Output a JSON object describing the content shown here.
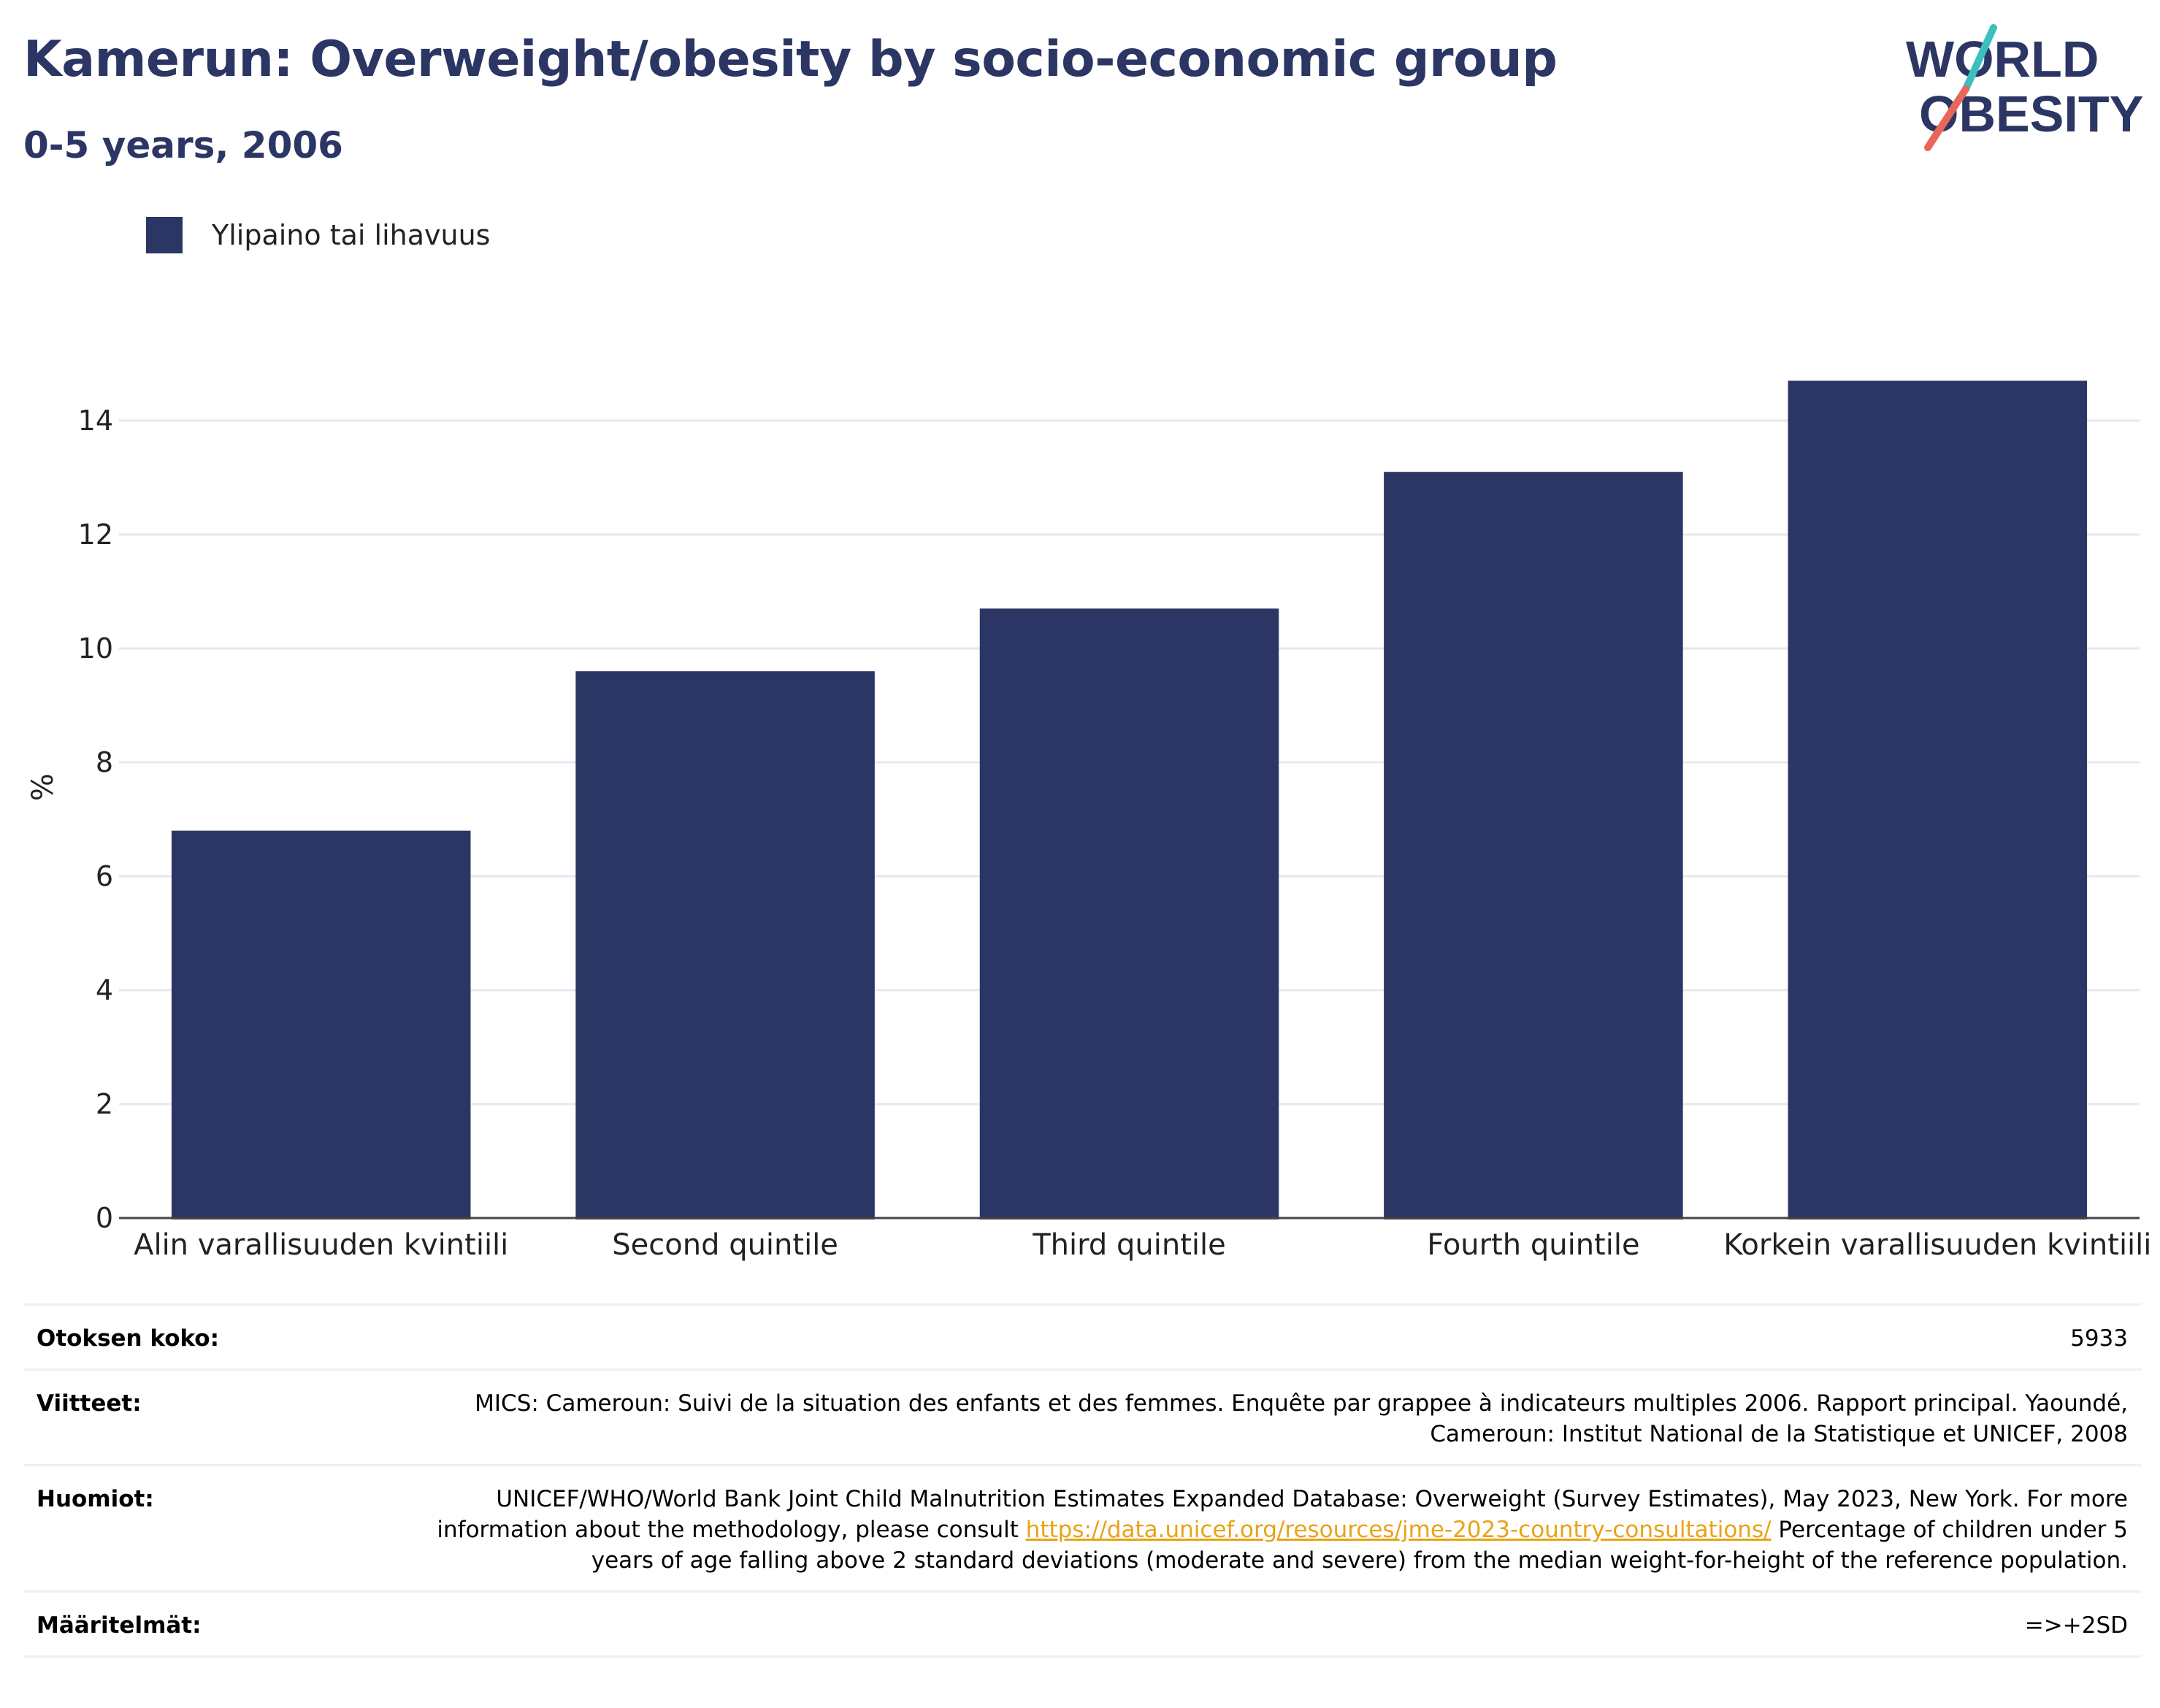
{
  "title": "Kamerun: Overweight/obesity by socio-economic group",
  "subtitle": "0-5 years, 2006",
  "logo": {
    "line1": "WORLD",
    "line2": "OBESITY"
  },
  "colors": {
    "bar": "#2b3664",
    "title": "#2b3664",
    "link": "#e8a317",
    "logo_teal": "#3cbfbf",
    "logo_red": "#e8675a"
  },
  "legend": {
    "label": "Ylipaino tai lihavuus"
  },
  "chart_data": {
    "type": "bar",
    "categories": [
      "Alin varallisuuden kvintiili",
      "Second quintile",
      "Third quintile",
      "Fourth quintile",
      "Korkein varallisuuden kvintiili"
    ],
    "series": [
      {
        "name": "Ylipaino tai lihavuus",
        "values": [
          6.8,
          9.6,
          10.7,
          13.1,
          14.7
        ]
      }
    ],
    "ylabel": "%",
    "ylim": [
      0,
      15
    ],
    "yticks": [
      0,
      2,
      4,
      6,
      8,
      10,
      12,
      14
    ],
    "grid": true
  },
  "footer": {
    "sample_label": "Otoksen koko:",
    "sample_value": "5933",
    "refs_label": "Viitteet:",
    "refs_value": "MICS: Cameroun: Suivi de la situation des enfants et des femmes. Enquête par grappee à indicateurs multiples 2006. Rapport principal. Yaoundé, Cameroun: Institut National de la Statistique et UNICEF, 2008",
    "notes_label": "Huomiot:",
    "notes_text1": "UNICEF/WHO/World Bank Joint Child Malnutrition Estimates Expanded Database: Overweight (Survey Estimates), May 2023, New York. For more information about the methodology, please consult ",
    "notes_link": "https://data.unicef.org/resources/jme-2023-country-consultations/",
    "notes_text2": " Percentage of children under 5 years of age falling above 2 standard deviations (moderate and severe) from the median weight-for-height of the reference population.",
    "defs_label": "Määritelmät:",
    "defs_value": "=>+2SD"
  }
}
